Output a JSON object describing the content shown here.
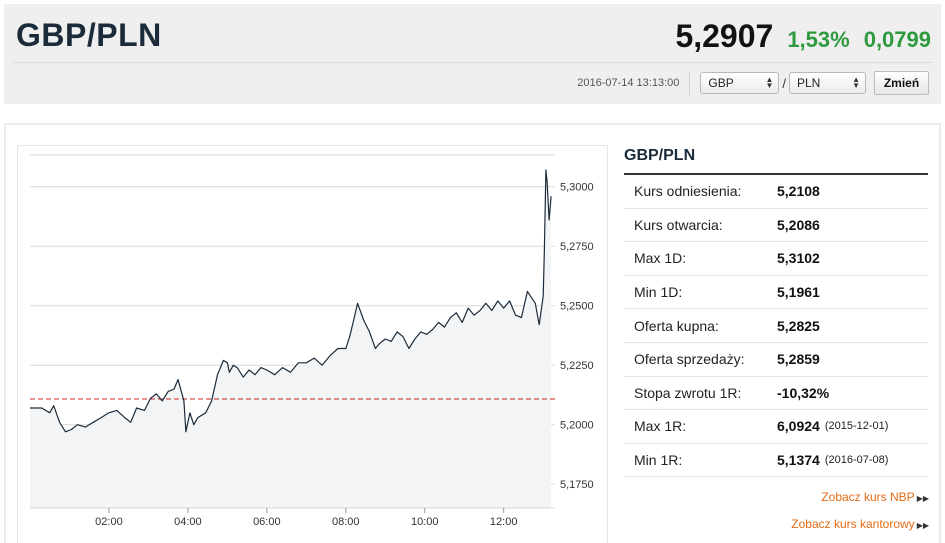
{
  "header": {
    "pair": "GBP/PLN",
    "price": "5,2907",
    "change_pct": "1,53%",
    "change_abs": "0,0799",
    "timestamp": "2016-07-14 13:13:00",
    "from_currency": "GBP",
    "separator": "/",
    "to_currency": "PLN",
    "change_button": "Zmień"
  },
  "info": {
    "title": "GBP/PLN",
    "rows": [
      {
        "label": "Kurs odniesienia:",
        "value": "5,2108",
        "date": ""
      },
      {
        "label": "Kurs otwarcia:",
        "value": "5,2086",
        "date": ""
      },
      {
        "label": "Max 1D:",
        "value": "5,3102",
        "date": ""
      },
      {
        "label": "Min 1D:",
        "value": "5,1961",
        "date": ""
      },
      {
        "label": "Oferta kupna:",
        "value": "5,2825",
        "date": ""
      },
      {
        "label": "Oferta sprzedaży:",
        "value": "5,2859",
        "date": ""
      },
      {
        "label": "Stopa zwrotu 1R:",
        "value": "-10,32%",
        "date": ""
      },
      {
        "label": "Max 1R:",
        "value": "6,0924",
        "date": "(2015-12-01)"
      },
      {
        "label": "Min 1R:",
        "value": "5,1374",
        "date": "(2016-07-08)"
      }
    ],
    "links": [
      {
        "label": "Zobacz kurs NBP",
        "arrow": "▶▶"
      },
      {
        "label": "Zobacz kurs kantorowy",
        "arrow": "▶▶"
      }
    ]
  },
  "colors": {
    "up": "#2f9a3f",
    "line": "#1b2b3a",
    "reference": "#cc2222",
    "link": "#e46b14"
  },
  "chart_data": {
    "type": "line",
    "xlim": [
      0.0,
      13.3
    ],
    "ylim": [
      5.165,
      5.315
    ],
    "x_ticks": [
      2,
      4,
      6,
      8,
      10,
      12
    ],
    "x_tick_labels": [
      "02:00",
      "04:00",
      "06:00",
      "08:00",
      "10:00",
      "12:00"
    ],
    "y_ticks": [
      5.175,
      5.2,
      5.225,
      5.25,
      5.275,
      5.3
    ],
    "y_tick_labels": [
      "5,1750",
      "5,2000",
      "5,2250",
      "5,2500",
      "5,2750",
      "5,3000"
    ],
    "reference_value": 5.2108,
    "series": [
      {
        "name": "",
        "x": [
          0.0,
          0.3,
          0.5,
          0.6,
          0.75,
          0.9,
          1.05,
          1.2,
          1.4,
          1.6,
          1.8,
          2.0,
          2.2,
          2.4,
          2.55,
          2.7,
          2.9,
          3.05,
          3.2,
          3.35,
          3.5,
          3.65,
          3.75,
          3.85,
          3.9,
          3.95,
          4.05,
          4.15,
          4.25,
          4.45,
          4.6,
          4.75,
          4.9,
          5.0,
          5.05,
          5.15,
          5.25,
          5.4,
          5.55,
          5.7,
          5.85,
          6.0,
          6.2,
          6.4,
          6.6,
          6.8,
          7.0,
          7.2,
          7.4,
          7.6,
          7.8,
          8.0,
          8.1,
          8.2,
          8.3,
          8.45,
          8.6,
          8.75,
          8.85,
          9.0,
          9.15,
          9.3,
          9.45,
          9.6,
          9.75,
          9.9,
          10.05,
          10.2,
          10.35,
          10.5,
          10.65,
          10.8,
          10.95,
          11.1,
          11.25,
          11.4,
          11.55,
          11.7,
          11.85,
          12.0,
          12.15,
          12.3,
          12.45,
          12.6,
          12.8,
          12.9,
          13.0,
          13.03,
          13.07,
          13.1,
          13.15,
          13.2
        ],
        "values": [
          5.207,
          5.207,
          5.205,
          5.208,
          5.201,
          5.197,
          5.198,
          5.2,
          5.199,
          5.201,
          5.203,
          5.205,
          5.206,
          5.203,
          5.201,
          5.207,
          5.206,
          5.211,
          5.213,
          5.21,
          5.214,
          5.215,
          5.219,
          5.213,
          5.21,
          5.197,
          5.205,
          5.2,
          5.203,
          5.205,
          5.21,
          5.221,
          5.227,
          5.226,
          5.222,
          5.225,
          5.224,
          5.22,
          5.223,
          5.221,
          5.224,
          5.223,
          5.221,
          5.224,
          5.222,
          5.226,
          5.226,
          5.228,
          5.225,
          5.229,
          5.232,
          5.232,
          5.237,
          5.244,
          5.251,
          5.244,
          5.239,
          5.232,
          5.234,
          5.236,
          5.235,
          5.239,
          5.237,
          5.232,
          5.236,
          5.239,
          5.238,
          5.24,
          5.243,
          5.241,
          5.245,
          5.247,
          5.243,
          5.249,
          5.246,
          5.248,
          5.251,
          5.248,
          5.252,
          5.249,
          5.252,
          5.246,
          5.245,
          5.256,
          5.251,
          5.242,
          5.254,
          5.272,
          5.307,
          5.302,
          5.286,
          5.296
        ]
      }
    ]
  }
}
